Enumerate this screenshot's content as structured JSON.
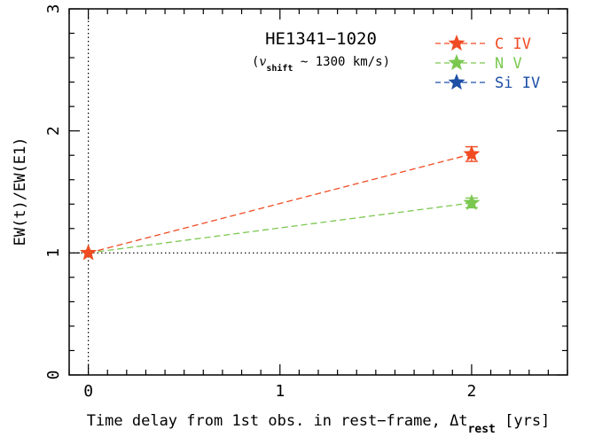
{
  "chart_data": {
    "type": "line",
    "title": "HE1341−1020",
    "subtitle_prefix": "(",
    "subtitle_var": "v",
    "subtitle_sub": "shift",
    "subtitle_rest": " ~ 1300 km/s)",
    "xlabel_main": "Time delay from 1st obs. in rest−frame, Δt",
    "xlabel_sub": "rest",
    "xlabel_unit": " [yrs]",
    "ylabel": "EW(t)/EW(E1)",
    "xlim": [
      -0.1,
      2.5
    ],
    "ylim": [
      0,
      3
    ],
    "xticks": [
      0,
      1,
      2
    ],
    "yticks": [
      0,
      1,
      2,
      3
    ],
    "x_tick_labels": [
      "0",
      "1",
      "2"
    ],
    "y_tick_labels": [
      "0",
      "1",
      "2",
      "3"
    ],
    "grid": false,
    "reference_lines": {
      "x": 0,
      "y": 1
    },
    "legend_position": "top-right",
    "series": [
      {
        "name": "C  IV",
        "color": "#f04b23",
        "x": [
          0,
          2
        ],
        "y": [
          1.0,
          1.81
        ],
        "yerr": [
          0.0,
          0.06
        ]
      },
      {
        "name": "N  V",
        "color": "#7bc850",
        "x": [
          0,
          2
        ],
        "y": [
          1.0,
          1.41
        ],
        "yerr": [
          0.0,
          0.04
        ]
      },
      {
        "name": "Si IV",
        "color": "#1d4fa6",
        "x": [],
        "y": [],
        "yerr": []
      }
    ]
  }
}
